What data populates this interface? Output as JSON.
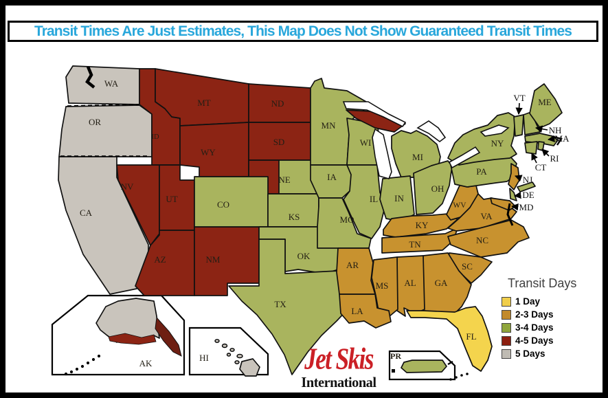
{
  "banner": {
    "text": "Transit Times Are Just Estimates, This Map Does Not Show Guaranteed Transit Times"
  },
  "legend": {
    "title": "Transit Days",
    "items": [
      {
        "key": "1",
        "label": "1 Day",
        "swatch": "#F0CE4B",
        "map_fill": "#F4D44D"
      },
      {
        "key": "2-3",
        "label": "2-3 Days",
        "swatch": "#C28A2C",
        "map_fill": "#C8922F"
      },
      {
        "key": "3-4",
        "label": "3-4 Days",
        "swatch": "#8FA53C",
        "map_fill": "#A9B45E"
      },
      {
        "key": "4-5",
        "label": "4-5 Days",
        "swatch": "#8C1F10",
        "map_fill": "#8C2414"
      },
      {
        "key": "5",
        "label": "5 Days",
        "swatch": "#BFBBB3",
        "map_fill": "#C9C4BC"
      }
    ]
  },
  "logo": {
    "line1": "Jet Skis",
    "line2": "International"
  },
  "states": [
    {
      "abbr": "WA",
      "transit": "5"
    },
    {
      "abbr": "OR",
      "transit": "5"
    },
    {
      "abbr": "CA",
      "transit": "5"
    },
    {
      "abbr": "ID",
      "transit": "4-5"
    },
    {
      "abbr": "NV",
      "transit": "4-5"
    },
    {
      "abbr": "UT",
      "transit": "4-5"
    },
    {
      "abbr": "AZ",
      "transit": "4-5"
    },
    {
      "abbr": "MT",
      "transit": "4-5"
    },
    {
      "abbr": "WY",
      "transit": "4-5"
    },
    {
      "abbr": "NM",
      "transit": "4-5"
    },
    {
      "abbr": "ND",
      "transit": "4-5"
    },
    {
      "abbr": "SD",
      "transit": "4-5"
    },
    {
      "abbr": "NE",
      "transit": "3-4"
    },
    {
      "abbr": "NE_W",
      "transit": "4-5"
    },
    {
      "abbr": "CO",
      "transit": "3-4"
    },
    {
      "abbr": "KS",
      "transit": "3-4"
    },
    {
      "abbr": "OK",
      "transit": "3-4"
    },
    {
      "abbr": "TX",
      "transit": "3-4"
    },
    {
      "abbr": "MN",
      "transit": "3-4"
    },
    {
      "abbr": "IA",
      "transit": "3-4"
    },
    {
      "abbr": "MO",
      "transit": "3-4"
    },
    {
      "abbr": "WI",
      "transit": "3-4"
    },
    {
      "abbr": "MI_UP",
      "transit": "4-5"
    },
    {
      "abbr": "MI",
      "transit": "3-4"
    },
    {
      "abbr": "IL",
      "transit": "3-4"
    },
    {
      "abbr": "IN",
      "transit": "3-4"
    },
    {
      "abbr": "OH",
      "transit": "3-4"
    },
    {
      "abbr": "KY",
      "transit": "2-3"
    },
    {
      "abbr": "TN",
      "transit": "2-3"
    },
    {
      "abbr": "WV",
      "transit": "2-3"
    },
    {
      "abbr": "VA",
      "transit": "2-3"
    },
    {
      "abbr": "NC",
      "transit": "2-3"
    },
    {
      "abbr": "SC",
      "transit": "2-3"
    },
    {
      "abbr": "GA",
      "transit": "2-3"
    },
    {
      "abbr": "AL",
      "transit": "2-3"
    },
    {
      "abbr": "MS",
      "transit": "2-3"
    },
    {
      "abbr": "AR",
      "transit": "2-3"
    },
    {
      "abbr": "LA",
      "transit": "2-3"
    },
    {
      "abbr": "FL",
      "transit": "1"
    },
    {
      "abbr": "PA",
      "transit": "3-4"
    },
    {
      "abbr": "NY",
      "transit": "3-4"
    },
    {
      "abbr": "LI",
      "transit": "3-4"
    },
    {
      "abbr": "NJ",
      "transit": "2-3"
    },
    {
      "abbr": "DE",
      "transit": "3-4"
    },
    {
      "abbr": "MD",
      "transit": "2-3"
    },
    {
      "abbr": "VT",
      "transit": "3-4"
    },
    {
      "abbr": "NH",
      "transit": "3-4"
    },
    {
      "abbr": "ME",
      "transit": "3-4"
    },
    {
      "abbr": "MA",
      "transit": "3-4"
    },
    {
      "abbr": "CT",
      "transit": "3-4"
    },
    {
      "abbr": "RI",
      "transit": "3-4"
    },
    {
      "abbr": "AK",
      "transit": "5"
    },
    {
      "abbr": "HI",
      "transit": "5"
    },
    {
      "abbr": "PR",
      "transit": "3-4"
    }
  ]
}
